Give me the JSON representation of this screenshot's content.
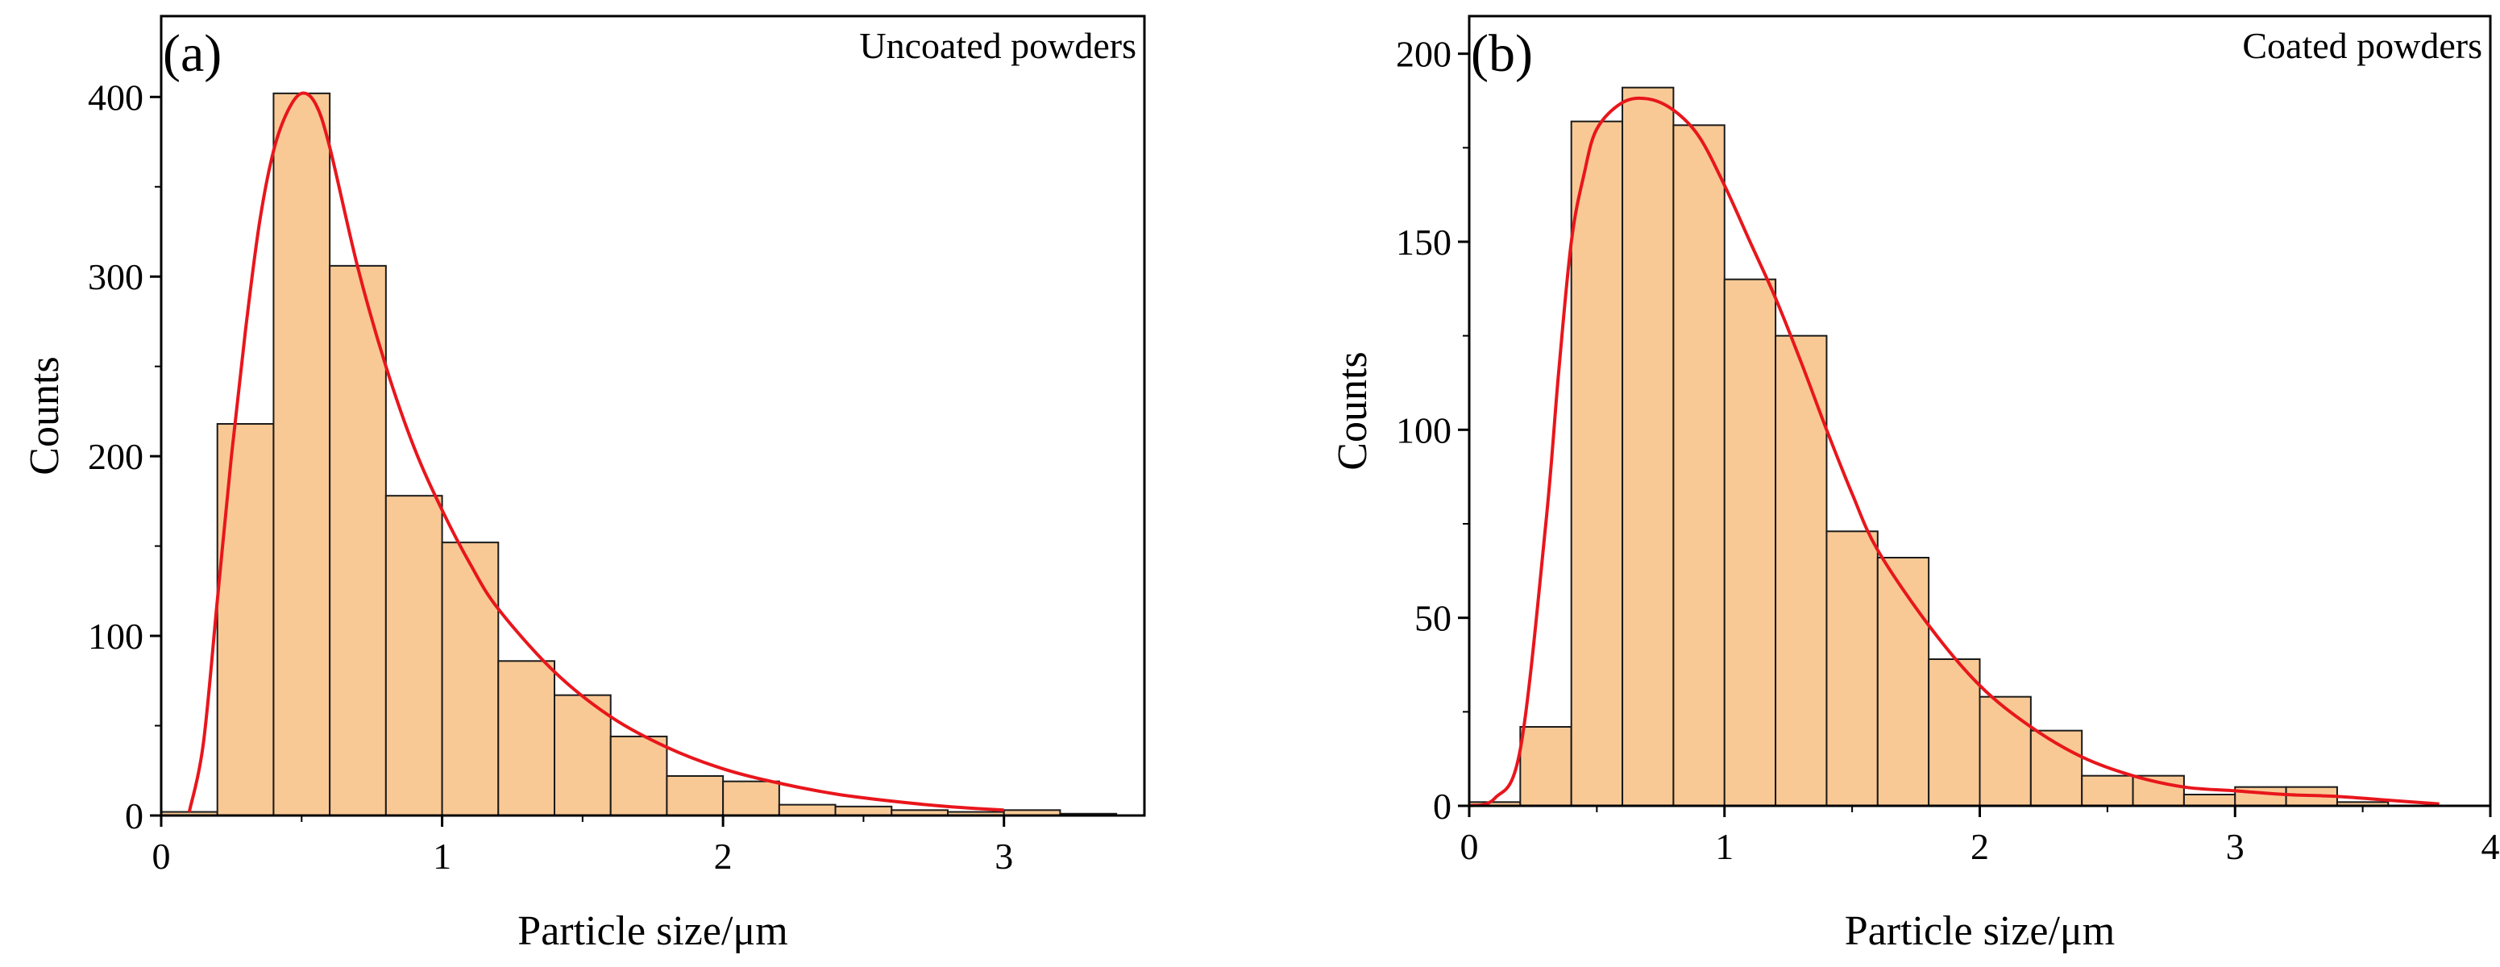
{
  "chart_data": [
    {
      "type": "bar",
      "panel_label": "(a)",
      "annotation": "Uncoated powders",
      "xlabel": "Particle size/μm",
      "ylabel": "Counts",
      "xlim": [
        0,
        3.5
      ],
      "ylim": [
        0,
        445
      ],
      "xticks": [
        0,
        1,
        2,
        3
      ],
      "yticks": [
        0,
        100,
        200,
        300,
        400
      ],
      "bin_width": 0.2,
      "bins": [
        {
          "x0": 0.0,
          "x1": 0.2,
          "count": 2
        },
        {
          "x0": 0.2,
          "x1": 0.4,
          "count": 218
        },
        {
          "x0": 0.4,
          "x1": 0.6,
          "count": 402
        },
        {
          "x0": 0.6,
          "x1": 0.8,
          "count": 306
        },
        {
          "x0": 0.8,
          "x1": 1.0,
          "count": 178
        },
        {
          "x0": 1.0,
          "x1": 1.2,
          "count": 152
        },
        {
          "x0": 1.2,
          "x1": 1.4,
          "count": 86
        },
        {
          "x0": 1.4,
          "x1": 1.6,
          "count": 67
        },
        {
          "x0": 1.6,
          "x1": 1.8,
          "count": 44
        },
        {
          "x0": 1.8,
          "x1": 2.0,
          "count": 22
        },
        {
          "x0": 2.0,
          "x1": 2.2,
          "count": 19
        },
        {
          "x0": 2.2,
          "x1": 2.4,
          "count": 6
        },
        {
          "x0": 2.4,
          "x1": 2.6,
          "count": 5
        },
        {
          "x0": 2.6,
          "x1": 2.8,
          "count": 3
        },
        {
          "x0": 2.8,
          "x1": 3.0,
          "count": 2
        },
        {
          "x0": 3.0,
          "x1": 3.2,
          "count": 3
        },
        {
          "x0": 3.2,
          "x1": 3.4,
          "count": 1
        }
      ],
      "fit_curve": {
        "name": "Fit curve",
        "x": [
          0.1,
          0.15,
          0.2,
          0.25,
          0.3,
          0.35,
          0.4,
          0.45,
          0.5,
          0.55,
          0.6,
          0.7,
          0.8,
          0.9,
          1.0,
          1.1,
          1.2,
          1.4,
          1.6,
          1.8,
          2.0,
          2.2,
          2.4,
          2.6,
          2.8,
          3.0
        ],
        "y": [
          2,
          40,
          120,
          200,
          270,
          330,
          370,
          392,
          402,
          396,
          372,
          305,
          250,
          205,
          170,
          140,
          115,
          80,
          55,
          38,
          26,
          18,
          12,
          8,
          5,
          3
        ]
      },
      "colors": {
        "bar_fill": "#F9C995",
        "bar_stroke": "#1a1a1a",
        "curve": "#E8161C",
        "axis": "#000000"
      }
    },
    {
      "type": "bar",
      "panel_label": "(b)",
      "annotation": "Coated powders",
      "xlabel": "Particle size/μm",
      "ylabel": "Counts",
      "xlim": [
        0,
        4
      ],
      "ylim": [
        0,
        210
      ],
      "xticks": [
        0,
        1,
        2,
        3,
        4
      ],
      "yticks": [
        0,
        50,
        100,
        150,
        200
      ],
      "bin_width": 0.2,
      "bins": [
        {
          "x0": 0.0,
          "x1": 0.2,
          "count": 1
        },
        {
          "x0": 0.2,
          "x1": 0.4,
          "count": 21
        },
        {
          "x0": 0.4,
          "x1": 0.6,
          "count": 182
        },
        {
          "x0": 0.6,
          "x1": 0.8,
          "count": 191
        },
        {
          "x0": 0.8,
          "x1": 1.0,
          "count": 181
        },
        {
          "x0": 1.0,
          "x1": 1.2,
          "count": 140
        },
        {
          "x0": 1.2,
          "x1": 1.4,
          "count": 125
        },
        {
          "x0": 1.4,
          "x1": 1.6,
          "count": 73
        },
        {
          "x0": 1.6,
          "x1": 1.8,
          "count": 66
        },
        {
          "x0": 1.8,
          "x1": 2.0,
          "count": 39
        },
        {
          "x0": 2.0,
          "x1": 2.2,
          "count": 29
        },
        {
          "x0": 2.2,
          "x1": 2.4,
          "count": 20
        },
        {
          "x0": 2.4,
          "x1": 2.6,
          "count": 8
        },
        {
          "x0": 2.6,
          "x1": 2.8,
          "count": 8
        },
        {
          "x0": 2.8,
          "x1": 3.0,
          "count": 3
        },
        {
          "x0": 3.0,
          "x1": 3.2,
          "count": 5
        },
        {
          "x0": 3.2,
          "x1": 3.4,
          "count": 5
        },
        {
          "x0": 3.4,
          "x1": 3.6,
          "count": 1
        }
      ],
      "fit_curve": {
        "name": "Fit curve",
        "x": [
          0,
          0.1,
          0.2,
          0.3,
          0.35,
          0.4,
          0.45,
          0.5,
          0.6,
          0.7,
          0.8,
          0.9,
          1.0,
          1.1,
          1.2,
          1.3,
          1.4,
          1.5,
          1.6,
          1.8,
          2.0,
          2.2,
          2.4,
          2.6,
          2.8,
          3.0,
          3.2,
          3.4,
          3.6,
          3.8
        ],
        "y": [
          0,
          2,
          15,
          75,
          115,
          150,
          168,
          180,
          187,
          188,
          185,
          178,
          165,
          150,
          135,
          118,
          100,
          83,
          68,
          48,
          32,
          21,
          13,
          8,
          5,
          4,
          3,
          2.5,
          1.5,
          0.5
        ]
      },
      "colors": {
        "bar_fill": "#F9C995",
        "bar_stroke": "#1a1a1a",
        "curve": "#E8161C",
        "axis": "#000000"
      }
    }
  ]
}
